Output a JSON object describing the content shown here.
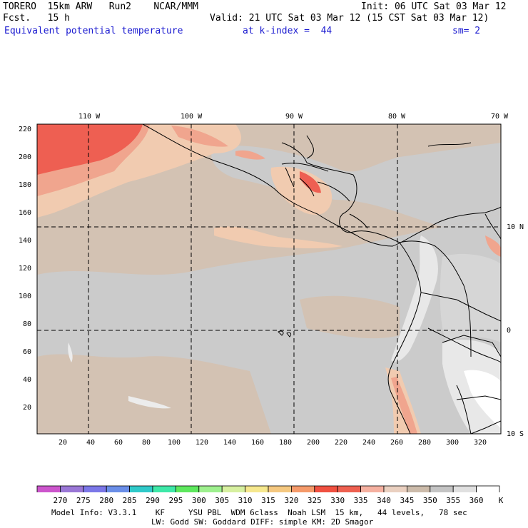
{
  "header": {
    "model": "TORERO  15km ARW   Run2    NCAR/MMM",
    "init": "Init: 06 UTC Sat 03 Mar 12",
    "fcst": "Fcst.   15 h",
    "valid": "Valid: 21 UTC Sat 03 Mar 12 (15 CST Sat 03 Mar 12)",
    "field": "Equivalent potential temperature",
    "kindex": "at k-index =  44",
    "smooth": "sm= 2"
  },
  "map": {
    "lon_labels": [
      "110 W",
      "100 W",
      "90 W",
      "80 W",
      "70 W"
    ],
    "lat_labels": [
      "10 N",
      "0",
      "10 S"
    ],
    "y_ticks": [
      "220",
      "200",
      "180",
      "160",
      "140",
      "120",
      "100",
      "80",
      "60",
      "40",
      "20"
    ],
    "x_ticks": [
      "20",
      "40",
      "60",
      "80",
      "100",
      "120",
      "140",
      "160",
      "180",
      "200",
      "220",
      "240",
      "260",
      "280",
      "300",
      "320"
    ],
    "background_colors": {
      "ocean": "#cbcbcb",
      "land_warm": "#d3c2b3",
      "warm1": "#f1cbb0",
      "warm2": "#f0a58e",
      "warm3": "#ee5f52",
      "cold": "#e8e8e8"
    }
  },
  "colorbar": {
    "levels": [
      "270",
      "275",
      "280",
      "285",
      "290",
      "295",
      "300",
      "305",
      "310",
      "315",
      "320",
      "325",
      "330",
      "335",
      "340",
      "345",
      "350",
      "355",
      "360",
      "K"
    ],
    "colors": [
      "#cc55cc",
      "#9a77d6",
      "#7b77e8",
      "#6a8ee8",
      "#2fc9c9",
      "#3ee8a8",
      "#5ee85e",
      "#9ef08e",
      "#d7f0a0",
      "#f6e88e",
      "#f5c880",
      "#f59a6a",
      "#f05040",
      "#ee6050",
      "#f5b0a0",
      "#ead0c0",
      "#ccbbaa",
      "#c4c4c4",
      "#e0e0e0",
      "#ffffff"
    ]
  },
  "footer": {
    "line1": "Model Info: V3.3.1    KF     YSU PBL  WDM 6class  Noah LSM  15 km,   44 levels,   78 sec",
    "line2": "LW: Godd SW: Goddard DIFF: simple KM: 2D Smagor"
  }
}
